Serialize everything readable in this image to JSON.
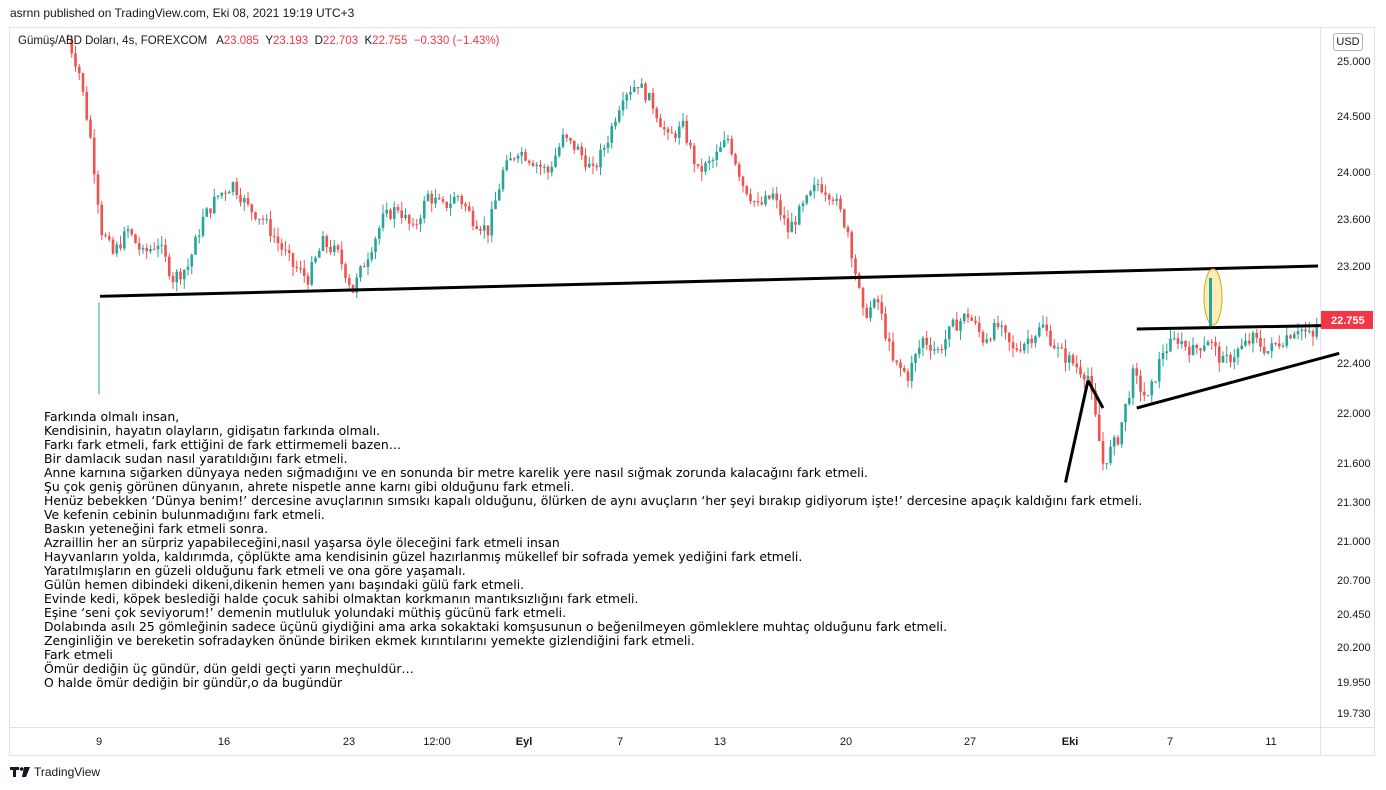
{
  "header": {
    "published": "asrnn published on TradingView.com, Eki 08, 2021 19:19 UTC+3"
  },
  "legend": {
    "symbol": "Gümüş/ABD Doları, 4s, FOREXCOM",
    "open_label": "A",
    "open": "23.085",
    "high_label": "Y",
    "high": "23.193",
    "low_label": "D",
    "low": "22.703",
    "close_label": "K",
    "close": "22.755",
    "change": "−0.330 (−1.43%)"
  },
  "currency_button": "USD",
  "footer": {
    "brand": "TradingView"
  },
  "colors": {
    "up": "#26a69a",
    "down": "#ef5350",
    "label_bg": "#f23645",
    "line": "#000000",
    "highlight": "#f9e79f"
  },
  "chart_data": {
    "type": "candlestick",
    "title": "Gümüş/ABD Doları, 4s, FOREXCOM",
    "price_ticks": [
      "25.000",
      "24.500",
      "24.000",
      "23.600",
      "23.200",
      "22.400",
      "22.000",
      "21.600",
      "21.300",
      "21.000",
      "20.700",
      "20.450",
      "20.200",
      "19.950",
      "19.730"
    ],
    "last_price_label": "22.755",
    "time_ticks": [
      "9",
      "16",
      "23",
      "12:00",
      "Eyl",
      "7",
      "13",
      "20",
      "27",
      "Eki",
      "7",
      "11"
    ],
    "bold_time_ticks": [
      "Eyl",
      "Eki"
    ],
    "price_path": [
      [
        0,
        25.2
      ],
      [
        3,
        24.9
      ],
      [
        6,
        24.3
      ],
      [
        9,
        23.5
      ],
      [
        12,
        23.3
      ],
      [
        16,
        23.5
      ],
      [
        20,
        23.3
      ],
      [
        24,
        23.4
      ],
      [
        28,
        23.1
      ],
      [
        32,
        23.2
      ],
      [
        36,
        23.6
      ],
      [
        40,
        23.8
      ],
      [
        44,
        23.9
      ],
      [
        48,
        23.7
      ],
      [
        52,
        23.6
      ],
      [
        56,
        23.4
      ],
      [
        60,
        23.2
      ],
      [
        64,
        23.1
      ],
      [
        68,
        23.4
      ],
      [
        72,
        23.3
      ],
      [
        76,
        23.0
      ],
      [
        80,
        23.3
      ],
      [
        84,
        23.6
      ],
      [
        88,
        23.7
      ],
      [
        92,
        23.5
      ],
      [
        96,
        23.8
      ],
      [
        100,
        23.7
      ],
      [
        104,
        23.8
      ],
      [
        108,
        23.6
      ],
      [
        112,
        23.5
      ],
      [
        116,
        24.0
      ],
      [
        120,
        24.2
      ],
      [
        124,
        24.1
      ],
      [
        128,
        24.0
      ],
      [
        132,
        24.3
      ],
      [
        136,
        24.2
      ],
      [
        140,
        24.0
      ],
      [
        144,
        24.3
      ],
      [
        148,
        24.7
      ],
      [
        152,
        24.8
      ],
      [
        156,
        24.6
      ],
      [
        160,
        24.3
      ],
      [
        164,
        24.4
      ],
      [
        168,
        24.0
      ],
      [
        172,
        24.1
      ],
      [
        176,
        24.3
      ],
      [
        180,
        23.9
      ],
      [
        184,
        23.7
      ],
      [
        188,
        23.8
      ],
      [
        192,
        23.5
      ],
      [
        196,
        23.7
      ],
      [
        200,
        23.9
      ],
      [
        204,
        23.8
      ],
      [
        208,
        23.5
      ],
      [
        212,
        22.8
      ],
      [
        216,
        22.9
      ],
      [
        220,
        22.4
      ],
      [
        224,
        22.3
      ],
      [
        228,
        22.6
      ],
      [
        232,
        22.5
      ],
      [
        236,
        22.7
      ],
      [
        240,
        22.8
      ],
      [
        244,
        22.6
      ],
      [
        248,
        22.7
      ],
      [
        252,
        22.5
      ],
      [
        256,
        22.6
      ],
      [
        260,
        22.7
      ],
      [
        264,
        22.5
      ],
      [
        268,
        22.4
      ],
      [
        272,
        22.3
      ],
      [
        276,
        21.6
      ],
      [
        280,
        21.8
      ],
      [
        284,
        22.3
      ],
      [
        288,
        22.1
      ],
      [
        292,
        22.5
      ],
      [
        296,
        22.6
      ],
      [
        300,
        22.5
      ],
      [
        304,
        22.6
      ],
      [
        308,
        22.4
      ],
      [
        312,
        22.5
      ],
      [
        316,
        22.6
      ],
      [
        320,
        22.5
      ],
      [
        324,
        22.6
      ],
      [
        328,
        22.7
      ],
      [
        332,
        22.6
      ],
      [
        336,
        23.0
      ],
      [
        338,
        22.755
      ]
    ],
    "trendlines": [
      {
        "name": "support-resistance-line",
        "from": [
          0,
          22.95
        ],
        "to": [
          351,
          23.2
        ]
      },
      {
        "name": "flag-upper-line",
        "from": [
          285,
          22.68
        ],
        "to": [
          337,
          22.71
        ]
      },
      {
        "name": "flag-lower-line",
        "from": [
          285,
          22.04
        ],
        "to": [
          339,
          22.48
        ]
      },
      {
        "name": "flagpole-line",
        "from": [
          266,
          21.45
        ],
        "to": [
          272,
          22.26
        ]
      },
      {
        "name": "flagpole-line-2",
        "from": [
          272,
          22.26
        ],
        "to": [
          276,
          22.04
        ]
      }
    ]
  },
  "note_lines": [
    "Farkında olmalı insan,",
    "Kendisinin, hayatın olayların, gidişatın farkında olmalı.",
    "Farkı fark etmeli, fark ettiğini de fark ettirmemeli bazen…",
    "Bir damlacık sudan nasıl yaratıldığını fark etmeli.",
    "Anne karnına sığarken dünyaya neden sığmadığını ve en sonunda bir metre karelik yere nasıl sığmak zorunda kalacağını fark etmeli.",
    "Şu çok geniş görünen dünyanın, ahrete nispetle anne karnı gibi olduğunu fark etmeli.",
    "Henüz bebekken ‘Dünya benim!’ dercesine avuçlarının sımsıkı kapalı olduğunu, ölürken de aynı avuçların ‘her şeyi bırakıp gidiyorum işte!’ dercesine apaçık kaldığını fark etmeli.",
    "Ve kefenin cebinin bulunmadığını fark etmeli.",
    "Baskın yeteneğini fark etmeli sonra.",
    "Azraillin her an sürpriz yapabileceğini,nasıl yaşarsa öyle öleceğini fark etmeli insan",
    "Hayvanların yolda, kaldırımda, çöplükte ama kendisinin güzel hazırlanmış mükellef bir sofrada yemek yediğini fark etmeli.",
    "Yaratılmışların en güzeli olduğunu fark etmeli ve ona göre yaşamalı.",
    "Gülün hemen dibindeki dikeni,dikenin hemen yanı başındaki gülü fark etmeli.",
    "Evinde kedi, köpek beslediği halde çocuk sahibi olmaktan korkmanın mantıksızlığını fark etmeli.",
    "Eşine ‘seni çok seviyorum!’ demenin mutluluk yolundaki müthiş gücünü fark etmeli.",
    "Dolabında asılı 25 gömleğinin sadece üçünü giydiğini ama arka sokaktaki komşusunun o beğenilmeyen gömleklere muhtaç olduğunu fark etmeli.",
    "Zenginliğin ve bereketin sofradayken önünde biriken ekmek kırıntılarını yemekte gizlendiğini fark etmeli.",
    "Fark etmeli",
    "Ömür dediğin üç gündür, dün geldi geçti yarın meçhuldür…",
    "O halde ömür dediğin bir gündür,o da bugündür"
  ]
}
